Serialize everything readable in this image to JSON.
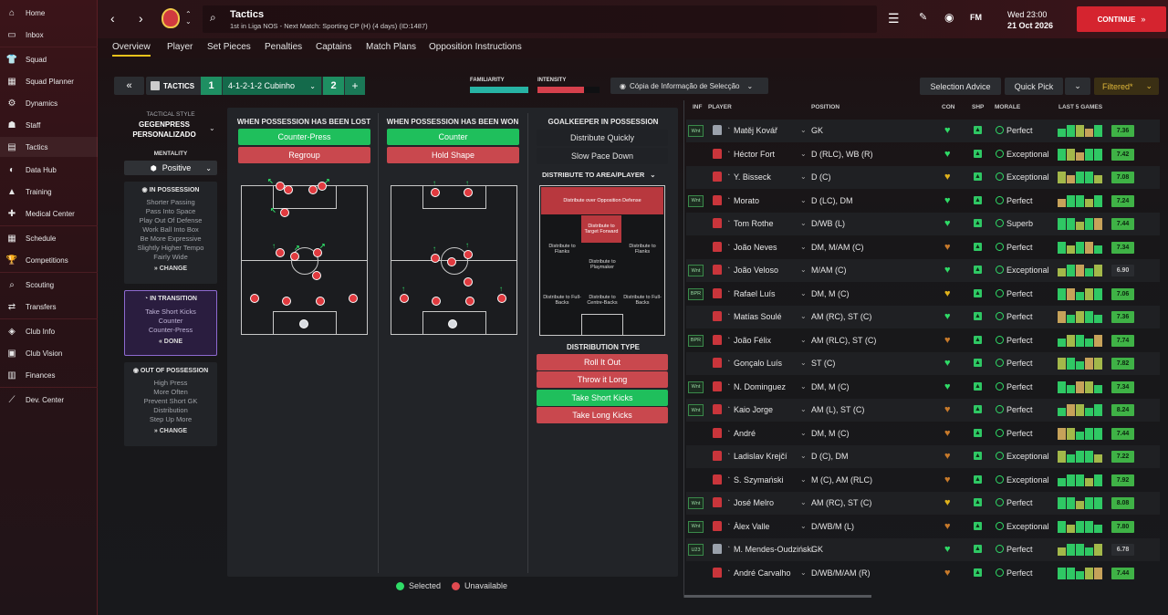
{
  "sidebar": {
    "items": [
      {
        "label": "Home",
        "icon": "home-icon"
      },
      {
        "label": "Inbox",
        "icon": "inbox-icon"
      },
      {
        "label": "Squad",
        "icon": "squad-icon"
      },
      {
        "label": "Squad Planner",
        "icon": "squad-planner-icon"
      },
      {
        "label": "Dynamics",
        "icon": "dynamics-icon"
      },
      {
        "label": "Staff",
        "icon": "staff-icon"
      },
      {
        "label": "Tactics",
        "icon": "tactics-icon"
      },
      {
        "label": "Data Hub",
        "icon": "data-hub-icon"
      },
      {
        "label": "Training",
        "icon": "training-icon"
      },
      {
        "label": "Medical Center",
        "icon": "medical-icon"
      },
      {
        "label": "Schedule",
        "icon": "schedule-icon"
      },
      {
        "label": "Competitions",
        "icon": "trophy-icon"
      },
      {
        "label": "Scouting",
        "icon": "scouting-icon"
      },
      {
        "label": "Transfers",
        "icon": "transfers-icon"
      },
      {
        "label": "Club Info",
        "icon": "club-info-icon"
      },
      {
        "label": "Club Vision",
        "icon": "club-vision-icon"
      },
      {
        "label": "Finances",
        "icon": "finances-icon"
      },
      {
        "label": "Dev. Center",
        "icon": "dev-center-icon"
      }
    ]
  },
  "header": {
    "title": "Tactics",
    "subtitle": "1st in Liga NOS - Next Match: Sporting CP (H) (4 days) (ID:1487)",
    "fm": "FM",
    "date_line1": "Wed 23:00",
    "date_line2": "21 Oct 2026",
    "continue": "CONTINUE"
  },
  "tabs": [
    "Overview",
    "Player",
    "Set Pieces",
    "Penalties",
    "Captains",
    "Match Plans",
    "Opposition Instructions"
  ],
  "toolbar": {
    "tactics_label": "TACTICS",
    "slot1": "1",
    "formation": "4-1-2-1-2 Cubinho",
    "slot2": "2",
    "add": "+",
    "familiarity_label": "FAMILIARITY",
    "intensity_label": "INTENSITY",
    "copy_label": "Cópia de Informação de Selecção",
    "selection_advice": "Selection Advice",
    "quick_pick": "Quick Pick",
    "filtered": "Filtered*"
  },
  "left_panel": {
    "style_label": "TACTICAL STYLE",
    "style_value": "GEGENPRESS PERSONALIZADO",
    "mentality_label": "MENTALITY",
    "mentality_value": "Positive",
    "in_possession": {
      "title": "IN POSSESSION",
      "items": [
        "Shorter Passing",
        "Pass Into Space",
        "Play Out Of Defense",
        "Work Ball Into Box",
        "Be More Expressive",
        "Slightly Higher Tempo",
        "Fairly Wide"
      ],
      "action": "CHANGE"
    },
    "in_transition": {
      "title": "IN TRANSITION",
      "items": [
        "Take Short Kicks",
        "Counter",
        "Counter-Press"
      ],
      "action": "DONE"
    },
    "out_of_possession": {
      "title": "OUT OF POSSESSION",
      "items": [
        "High Press",
        "More Often",
        "Prevent Short GK",
        "Distribution",
        "Step Up More"
      ],
      "action": "CHANGE"
    }
  },
  "transition": {
    "lost": {
      "title": "WHEN POSSESSION HAS BEEN LOST",
      "options": [
        "Counter-Press",
        "Regroup"
      ]
    },
    "won": {
      "title": "WHEN POSSESSION HAS BEEN WON",
      "options": [
        "Counter",
        "Hold Shape"
      ]
    },
    "gk": {
      "title": "GOALKEEPER IN POSSESSION",
      "options": [
        "Distribute Quickly",
        "Slow Pace Down"
      ],
      "area_label": "DISTRIBUTE TO AREA/PLAYER",
      "zones": [
        "Distribute over Opposition Defense",
        "Distribute to Target Forward",
        "Distribute to Flanks",
        "Distribute to Flanks",
        "Distribute to Playmaker",
        "Distribute to Full-Backs",
        "Distribute to Centre-Backs",
        "Distribute to Full-Backs"
      ],
      "type_label": "DISTRIBUTION TYPE",
      "types": [
        "Roll It Out",
        "Throw it Long",
        "Take Short Kicks",
        "Take Long Kicks"
      ]
    },
    "legend": {
      "selected": "Selected",
      "unavailable": "Unavailable"
    }
  },
  "players_header": {
    "inf": "INF",
    "player": "PLAYER",
    "position": "POSITION",
    "con": "CON",
    "shp": "SHP",
    "morale": "MORALE",
    "last5": "LAST 5 GAMES"
  },
  "players": [
    {
      "inf": "Wnt",
      "name": "Matěj Kovář",
      "pos": "GK",
      "morale": "Perfect",
      "rating": "7.36",
      "con": "#2fdc67",
      "kit": "w"
    },
    {
      "inf": "",
      "name": "Héctor Fort",
      "pos": "D (RLC), WB (R)",
      "morale": "Exceptional",
      "rating": "7.42",
      "con": "#2fdc67",
      "kit": "r"
    },
    {
      "inf": "",
      "name": "Y. Bisseck",
      "pos": "D (C)",
      "morale": "Exceptional",
      "rating": "7.08",
      "con": "#e0b21b",
      "kit": "r"
    },
    {
      "inf": "Wnt",
      "name": "Morato",
      "pos": "D (LC), DM",
      "morale": "Perfect",
      "rating": "7.24",
      "con": "#2fdc67",
      "kit": "r"
    },
    {
      "inf": "",
      "name": "Tom Rothe",
      "pos": "D/WB (L)",
      "morale": "Superb",
      "rating": "7.44",
      "con": "#2fdc67",
      "kit": "r"
    },
    {
      "inf": "",
      "name": "João Neves",
      "pos": "DM, M/AM (C)",
      "morale": "Perfect",
      "rating": "7.34",
      "con": "#c87a2a",
      "kit": "r"
    },
    {
      "inf": "Wnt",
      "name": "João Veloso",
      "pos": "M/AM (C)",
      "morale": "Exceptional",
      "rating": "6.90",
      "con": "#2fdc67",
      "kit": "r"
    },
    {
      "inf": "BPR",
      "name": "Rafael Luís",
      "pos": "DM, M (C)",
      "morale": "Perfect",
      "rating": "7.06",
      "con": "#e0b21b",
      "kit": "r"
    },
    {
      "inf": "",
      "name": "Matías Soulé",
      "pos": "AM (RC), ST (C)",
      "morale": "Perfect",
      "rating": "7.36",
      "con": "#2fdc67",
      "kit": "r"
    },
    {
      "inf": "BPR",
      "name": "João Félix",
      "pos": "AM (RLC), ST (C)",
      "morale": "Perfect",
      "rating": "7.74",
      "con": "#c87a2a",
      "kit": "r"
    },
    {
      "inf": "",
      "name": "Gonçalo Luís",
      "pos": "ST (C)",
      "morale": "Perfect",
      "rating": "7.82",
      "con": "#2fdc67",
      "kit": "r"
    },
    {
      "inf": "Wnt",
      "name": "N. Dominguez",
      "pos": "DM, M (C)",
      "morale": "Perfect",
      "rating": "7.34",
      "con": "#2fdc67",
      "kit": "r"
    },
    {
      "inf": "Wnt",
      "name": "Kaio Jorge",
      "pos": "AM (L), ST (C)",
      "morale": "Perfect",
      "rating": "8.24",
      "con": "#c87a2a",
      "kit": "r"
    },
    {
      "inf": "",
      "name": "André",
      "pos": "DM, M (C)",
      "morale": "Perfect",
      "rating": "7.44",
      "con": "#c87a2a",
      "kit": "r"
    },
    {
      "inf": "",
      "name": "Ladislav Krejčí",
      "pos": "D (C), DM",
      "morale": "Exceptional",
      "rating": "7.22",
      "con": "#c87a2a",
      "kit": "r"
    },
    {
      "inf": "",
      "name": "S. Szymański",
      "pos": "M (C), AM (RLC)",
      "morale": "Exceptional",
      "rating": "7.92",
      "con": "#c87a2a",
      "kit": "r"
    },
    {
      "inf": "Wnt",
      "name": "José Melro",
      "pos": "AM (RC), ST (C)",
      "morale": "Perfect",
      "rating": "8.08",
      "con": "#e0b21b",
      "kit": "r"
    },
    {
      "inf": "Wnt",
      "name": "Àlex Valle",
      "pos": "D/WB/M (L)",
      "morale": "Exceptional",
      "rating": "7.80",
      "con": "#c87a2a",
      "kit": "r"
    },
    {
      "inf": "U23",
      "name": "M. Mendes-Oudziński",
      "pos": "GK",
      "morale": "Perfect",
      "rating": "6.78",
      "con": "#2fdc67",
      "kit": "w"
    },
    {
      "inf": "",
      "name": "André Carvalho",
      "pos": "D/WB/M/AM (R)",
      "morale": "Perfect",
      "rating": "7.44",
      "con": "#c87a2a",
      "kit": "r"
    }
  ]
}
